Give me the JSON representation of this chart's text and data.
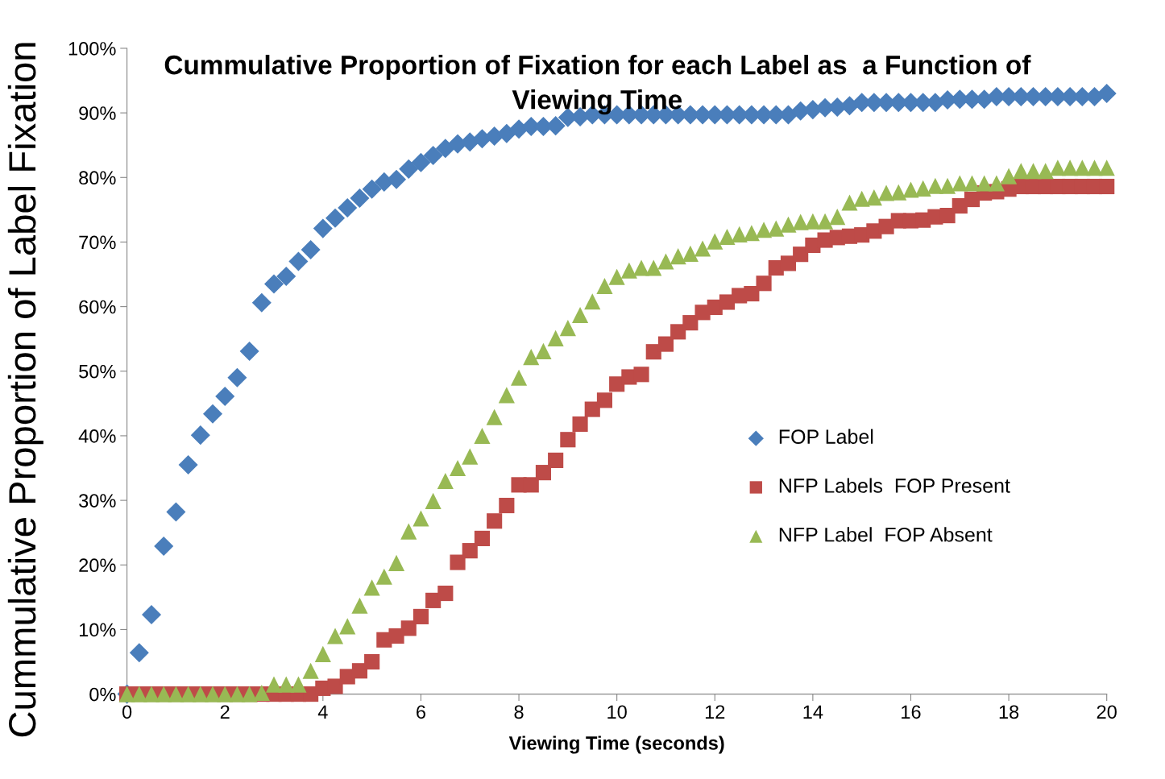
{
  "chart_data": {
    "type": "scatter",
    "title": "Cummulative Proportion of Fixation for each Label as  a Function of\nViewing Time",
    "xlabel": "Viewing Time (seconds)",
    "ylabel": "Cummulative Proportion of Label Fixation",
    "x": [
      0,
      0.25,
      0.5,
      0.75,
      1,
      1.25,
      1.5,
      1.75,
      2,
      2.25,
      2.5,
      2.75,
      3,
      3.25,
      3.5,
      3.75,
      4,
      4.25,
      4.5,
      4.75,
      5,
      5.25,
      5.5,
      5.75,
      6,
      6.25,
      6.5,
      6.75,
      7,
      7.25,
      7.5,
      7.75,
      8,
      8.25,
      8.5,
      8.75,
      9,
      9.25,
      9.5,
      9.75,
      10,
      10.25,
      10.5,
      10.75,
      11,
      11.25,
      11.5,
      11.75,
      12,
      12.25,
      12.5,
      12.75,
      13,
      13.25,
      13.5,
      13.75,
      14,
      14.25,
      14.5,
      14.75,
      15,
      15.25,
      15.5,
      15.75,
      16,
      16.25,
      16.5,
      16.75,
      17,
      17.25,
      17.5,
      17.75,
      18,
      18.25,
      18.5,
      18.75,
      19,
      19.25,
      19.5,
      19.75,
      20
    ],
    "series": [
      {
        "name": "FOP Label",
        "color": "#4a7ebb",
        "marker": "diamond",
        "values": [
          0,
          6.4,
          12.3,
          22.9,
          28.2,
          35.5,
          40.1,
          43.4,
          46.1,
          49.0,
          53.1,
          60.6,
          63.5,
          64.7,
          67.0,
          68.8,
          72.1,
          73.7,
          75.3,
          76.8,
          78.2,
          79.3,
          79.7,
          81.3,
          82.3,
          83.4,
          84.5,
          85.2,
          85.5,
          86.0,
          86.4,
          86.8,
          87.5,
          87.9,
          87.9,
          88.0,
          89.3,
          89.4,
          89.7,
          89.7,
          89.7,
          89.7,
          89.7,
          89.7,
          89.7,
          89.7,
          89.7,
          89.7,
          89.7,
          89.7,
          89.7,
          89.7,
          89.7,
          89.7,
          89.7,
          90.3,
          90.5,
          90.8,
          90.9,
          91.1,
          91.6,
          91.6,
          91.6,
          91.6,
          91.6,
          91.6,
          91.6,
          92.0,
          92.1,
          92.1,
          92.1,
          92.5,
          92.5,
          92.5,
          92.5,
          92.5,
          92.5,
          92.5,
          92.5,
          92.5,
          93.0
        ]
      },
      {
        "name": "NFP Labels  FOP Present",
        "color": "#be4b48",
        "marker": "square",
        "values": [
          0,
          0,
          0,
          0,
          0,
          0,
          0,
          0,
          0,
          0,
          0,
          0,
          0,
          0,
          0,
          0,
          0.9,
          1.2,
          2.7,
          3.6,
          5.0,
          8.4,
          9.0,
          10.2,
          12.0,
          14.5,
          15.6,
          20.4,
          22.2,
          24.1,
          26.8,
          29.2,
          32.4,
          32.4,
          34.3,
          36.2,
          39.4,
          41.8,
          44.1,
          45.5,
          48.0,
          49.1,
          49.5,
          53.0,
          54.2,
          56.1,
          57.5,
          59.1,
          59.9,
          60.7,
          61.7,
          62.0,
          63.6,
          66.0,
          66.7,
          68.1,
          69.5,
          70.3,
          70.7,
          70.9,
          71.1,
          71.7,
          72.4,
          73.3,
          73.3,
          73.4,
          73.9,
          74.1,
          75.6,
          76.6,
          77.6,
          77.8,
          78.2,
          78.6,
          78.6,
          78.6,
          78.6,
          78.6,
          78.6,
          78.6,
          78.6
        ]
      },
      {
        "name": "NFP Label  FOP Absent",
        "color": "#98b954",
        "marker": "triangle",
        "values": [
          0,
          0,
          0,
          0,
          0,
          0,
          0,
          0,
          0,
          0,
          0,
          0.2,
          1.5,
          1.5,
          1.5,
          3.6,
          6.2,
          9.0,
          10.5,
          13.7,
          16.5,
          18.2,
          20.3,
          25.2,
          27.2,
          29.9,
          33.0,
          35.0,
          36.8,
          40.0,
          42.9,
          46.3,
          49.0,
          52.2,
          53.1,
          55.1,
          56.7,
          58.7,
          60.8,
          63.2,
          64.6,
          65.6,
          66.0,
          66.0,
          67.0,
          67.8,
          68.2,
          69.0,
          70.1,
          70.8,
          71.2,
          71.4,
          71.9,
          72.1,
          72.7,
          73.1,
          73.2,
          73.2,
          73.9,
          76.1,
          76.7,
          76.9,
          77.6,
          77.7,
          78.1,
          78.3,
          78.7,
          78.7,
          79.1,
          79.1,
          79.1,
          79.1,
          80.2,
          81.0,
          81.0,
          81.0,
          81.5,
          81.5,
          81.5,
          81.5,
          81.5
        ]
      }
    ],
    "xlim": [
      0,
      20
    ],
    "xticks": [
      0,
      2,
      4,
      6,
      8,
      10,
      12,
      14,
      16,
      18,
      20
    ],
    "ylim": [
      0,
      100
    ],
    "yticks": [
      {
        "value": 0,
        "label": "0%"
      },
      {
        "value": 10,
        "label": "10%"
      },
      {
        "value": 20,
        "label": "20%"
      },
      {
        "value": 30,
        "label": "30%"
      },
      {
        "value": 40,
        "label": "40%"
      },
      {
        "value": 50,
        "label": "50%"
      },
      {
        "value": 60,
        "label": "60%"
      },
      {
        "value": 70,
        "label": "70%"
      },
      {
        "value": 80,
        "label": "80%"
      },
      {
        "value": 90,
        "label": "90%"
      },
      {
        "value": 100,
        "label": "100%"
      }
    ],
    "grid": false,
    "legend": "right"
  }
}
